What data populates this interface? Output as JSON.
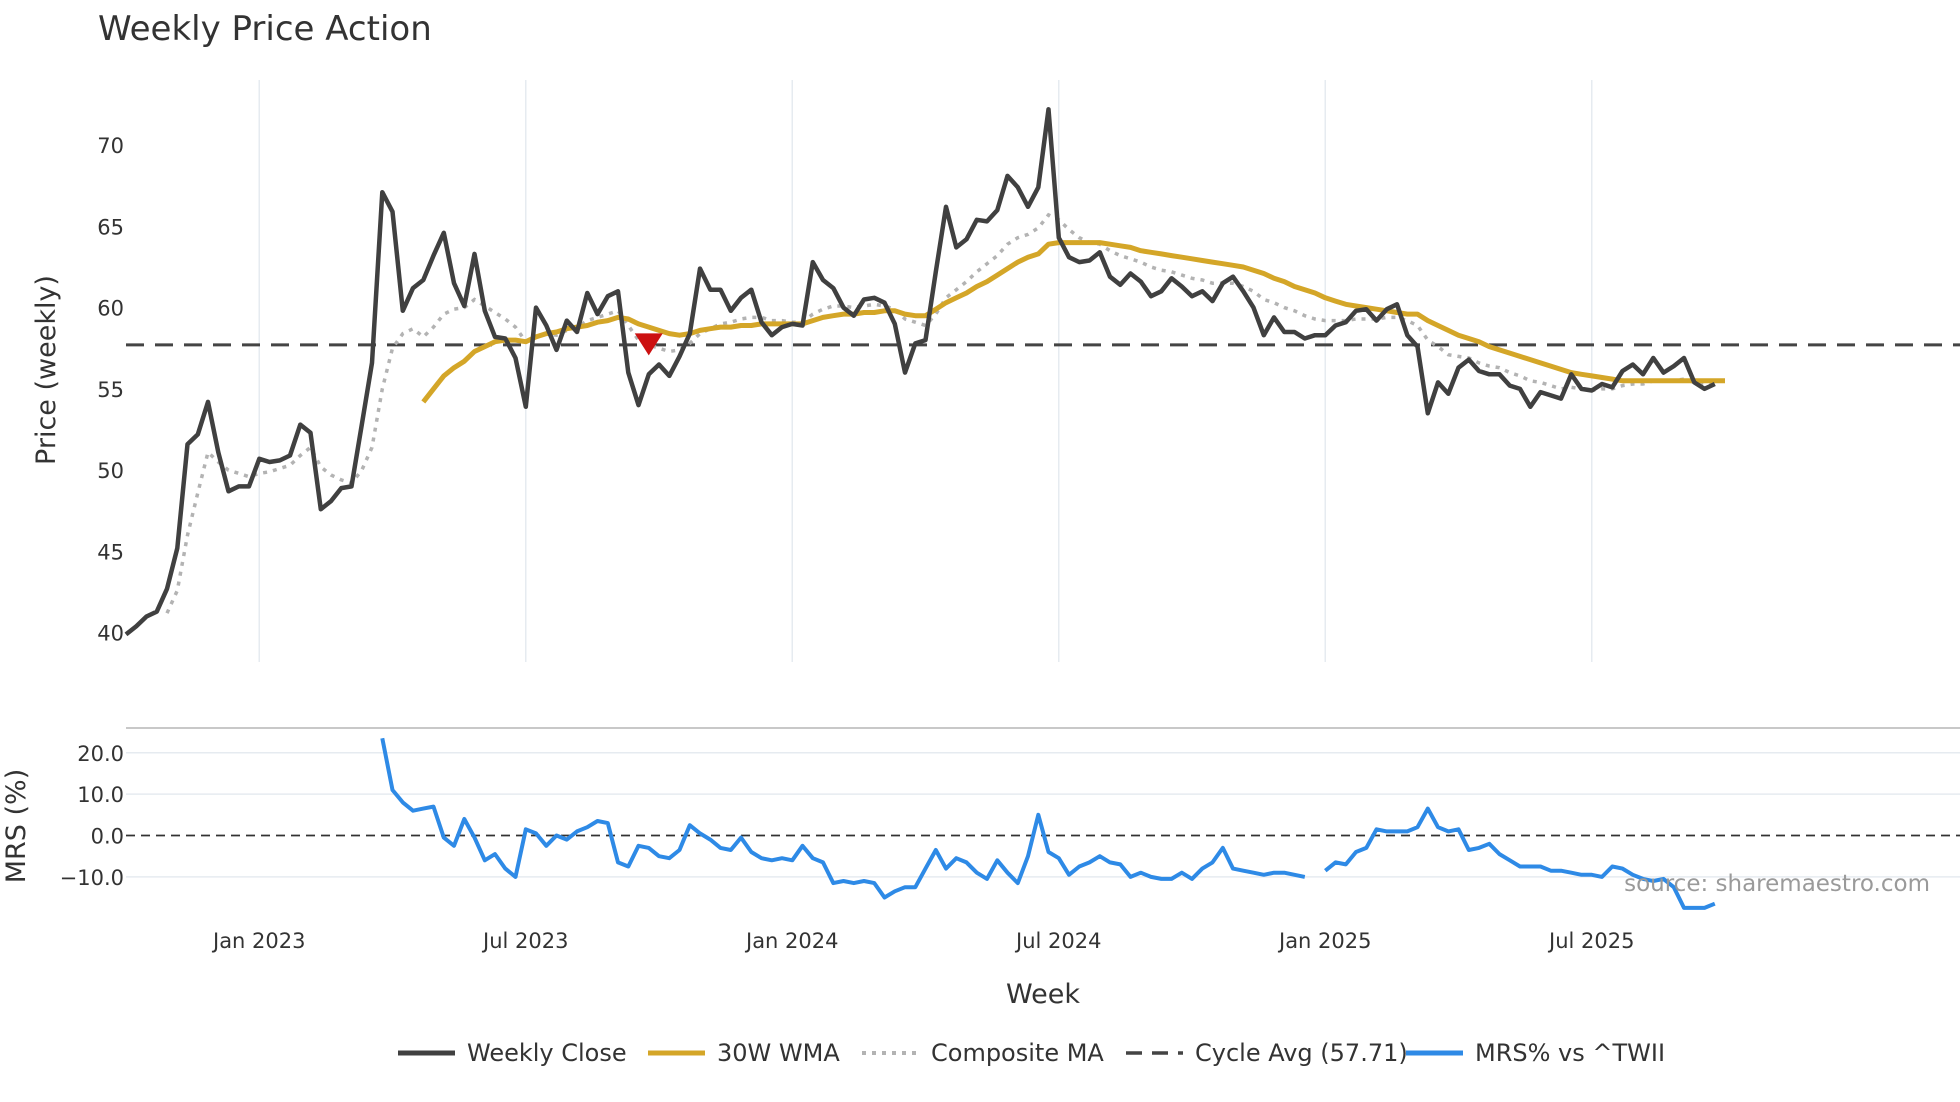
{
  "chart_data": [
    {
      "type": "line",
      "title": "Weekly Price Action",
      "ylabel": "Price (weekly)",
      "xlabel": "",
      "ylim": [
        38.2,
        74.0
      ],
      "yticks": [
        40,
        45,
        50,
        55,
        60,
        65,
        70
      ],
      "x_tick_labels": [
        "Jan 2023",
        "Jul 2023",
        "Jan 2024",
        "Jul 2024",
        "Jan 2025",
        "Jul 2025"
      ],
      "x_tick_weeks": [
        13,
        39,
        65,
        91,
        117,
        143
      ],
      "cycle_avg": 57.71,
      "signal_marker": {
        "type": "down-triangle",
        "week": 51,
        "value": 57.8,
        "color": "#cc1111"
      },
      "series": [
        {
          "name": "Weekly Close",
          "color": "#404040",
          "values": [
            39.9,
            40.4,
            41.0,
            41.3,
            42.7,
            45.2,
            51.6,
            52.2,
            54.2,
            51.1,
            48.7,
            49.0,
            49.0,
            50.7,
            50.5,
            50.6,
            50.9,
            52.8,
            52.3,
            47.6,
            48.1,
            48.9,
            49.0,
            52.8,
            56.6,
            67.1,
            65.9,
            59.8,
            61.2,
            61.7,
            63.2,
            64.6,
            61.5,
            60.1,
            63.3,
            59.8,
            58.2,
            58.1,
            56.9,
            53.9,
            60.0,
            58.9,
            57.4,
            59.2,
            58.5,
            60.9,
            59.6,
            60.7,
            61.0,
            56.0,
            54.0,
            55.9,
            56.5,
            55.8,
            57.0,
            58.4,
            62.4,
            61.1,
            61.1,
            59.8,
            60.6,
            61.1,
            59.1,
            58.3,
            58.8,
            59.0,
            58.9,
            62.8,
            61.7,
            61.2,
            60.0,
            59.5,
            60.5,
            60.6,
            60.3,
            59.0,
            56.0,
            57.8,
            58.0,
            62.2,
            66.2,
            63.7,
            64.2,
            65.4,
            65.3,
            66.0,
            68.1,
            67.4,
            66.2,
            67.4,
            72.2,
            64.3,
            63.1,
            62.8,
            62.9,
            63.4,
            61.9,
            61.4,
            62.1,
            61.6,
            60.7,
            61.0,
            61.8,
            61.3,
            60.7,
            61.0,
            60.4,
            61.5,
            61.9,
            61.0,
            60.0,
            58.3,
            59.4,
            58.5,
            58.5,
            58.1,
            58.3,
            58.3,
            58.9,
            59.1,
            59.8,
            59.9,
            59.2,
            59.9,
            60.2,
            58.3,
            57.6,
            53.5,
            55.4,
            54.7,
            56.3,
            56.8,
            56.1,
            55.9,
            55.9,
            55.2,
            55.0,
            53.9,
            54.8,
            54.6,
            54.4,
            55.9,
            55.0,
            54.9,
            55.3,
            55.1,
            56.1,
            56.5,
            55.9,
            56.9,
            56.0,
            56.4,
            56.9,
            55.4,
            55.0,
            55.3
          ]
        },
        {
          "name": "30W WMA",
          "color": "#d4a628",
          "values": [
            null,
            null,
            null,
            null,
            null,
            null,
            null,
            null,
            null,
            null,
            null,
            null,
            null,
            null,
            null,
            null,
            null,
            null,
            null,
            null,
            null,
            null,
            null,
            null,
            null,
            null,
            null,
            null,
            null,
            54.2,
            55.0,
            55.8,
            56.3,
            56.7,
            57.3,
            57.6,
            57.9,
            58.0,
            58.0,
            57.9,
            58.2,
            58.4,
            58.5,
            58.7,
            58.8,
            58.9,
            59.1,
            59.2,
            59.4,
            59.3,
            59.0,
            58.8,
            58.6,
            58.4,
            58.3,
            58.4,
            58.6,
            58.7,
            58.8,
            58.8,
            58.9,
            58.9,
            59.0,
            59.0,
            59.0,
            59.0,
            59.0,
            59.2,
            59.4,
            59.5,
            59.6,
            59.6,
            59.7,
            59.7,
            59.8,
            59.8,
            59.6,
            59.5,
            59.5,
            59.9,
            60.3,
            60.6,
            60.9,
            61.3,
            61.6,
            62.0,
            62.4,
            62.8,
            63.1,
            63.3,
            63.9,
            64.0,
            64.0,
            64.0,
            64.0,
            64.0,
            63.9,
            63.8,
            63.7,
            63.5,
            63.4,
            63.3,
            63.2,
            63.1,
            63.0,
            62.9,
            62.8,
            62.7,
            62.6,
            62.5,
            62.3,
            62.1,
            61.8,
            61.6,
            61.3,
            61.1,
            60.9,
            60.6,
            60.4,
            60.2,
            60.1,
            60.0,
            59.9,
            59.8,
            59.7,
            59.6,
            59.6,
            59.2,
            58.9,
            58.6,
            58.3,
            58.1,
            57.9,
            57.6,
            57.4,
            57.2,
            57.0,
            56.8,
            56.6,
            56.4,
            56.2,
            56.0,
            55.9,
            55.8,
            55.7,
            55.6,
            55.5,
            55.5,
            55.5,
            55.5,
            55.5,
            55.5,
            55.5,
            55.5,
            55.5,
            55.5,
            55.5
          ]
        },
        {
          "name": "Composite MA",
          "color": "#b3b3b3",
          "values": [
            null,
            null,
            null,
            null,
            41.2,
            42.6,
            46.0,
            48.6,
            51.1,
            50.5,
            50.0,
            49.8,
            49.6,
            49.8,
            49.9,
            50.1,
            50.3,
            50.9,
            51.4,
            50.2,
            49.7,
            49.4,
            49.2,
            50.0,
            51.4,
            55.0,
            57.5,
            58.4,
            58.7,
            58.2,
            58.8,
            59.6,
            59.9,
            60.0,
            60.5,
            60.1,
            59.7,
            59.3,
            58.8,
            57.9,
            58.2,
            58.4,
            58.3,
            58.6,
            58.8,
            59.2,
            59.4,
            59.6,
            59.8,
            58.9,
            58.0,
            57.7,
            57.5,
            57.3,
            57.4,
            57.8,
            58.4,
            58.7,
            59.0,
            59.1,
            59.3,
            59.4,
            59.4,
            59.2,
            59.2,
            59.1,
            59.1,
            59.6,
            59.9,
            60.1,
            60.1,
            60.0,
            60.1,
            60.2,
            60.1,
            59.9,
            59.3,
            59.1,
            58.9,
            59.6,
            60.6,
            61.1,
            61.6,
            62.2,
            62.7,
            63.2,
            63.9,
            64.3,
            64.5,
            64.9,
            65.7,
            65.4,
            64.8,
            64.3,
            64.0,
            63.9,
            63.5,
            63.2,
            63.0,
            62.8,
            62.5,
            62.3,
            62.2,
            62.0,
            61.8,
            61.7,
            61.5,
            61.5,
            61.5,
            61.3,
            61.0,
            60.5,
            60.3,
            60.0,
            59.8,
            59.5,
            59.3,
            59.2,
            59.2,
            59.2,
            59.3,
            59.3,
            59.3,
            59.4,
            59.4,
            59.2,
            58.9,
            58.0,
            57.6,
            57.1,
            57.0,
            56.9,
            56.6,
            56.4,
            56.3,
            56.0,
            55.8,
            55.5,
            55.4,
            55.2,
            55.0,
            55.1,
            55.0,
            54.9,
            55.0,
            55.0,
            55.2,
            55.3,
            55.3,
            55.5,
            55.5,
            55.5,
            55.6,
            55.4,
            55.3,
            55.3
          ]
        },
        {
          "name": "Cycle Avg (57.71)",
          "color": "#444444",
          "value": 57.71
        }
      ]
    },
    {
      "type": "line",
      "ylabel": "MRS (%)",
      "xlabel": "Week",
      "ylim": [
        -18.5,
        26.0
      ],
      "yticks": [
        20.0,
        10.0,
        0.0,
        -10.0
      ],
      "ytick_labels": [
        "20.0",
        "10.0",
        "0.0",
        "−10.0"
      ],
      "x_tick_labels": [
        "Jan 2023",
        "Jul 2023",
        "Jan 2024",
        "Jul 2024",
        "Jan 2025",
        "Jul 2025"
      ],
      "x_tick_weeks": [
        13,
        39,
        65,
        91,
        117,
        143
      ],
      "series": [
        {
          "name": "MRS% vs ^TWII",
          "color": "#2e8ae6",
          "values": [
            null,
            null,
            null,
            null,
            null,
            null,
            null,
            null,
            null,
            null,
            null,
            null,
            null,
            null,
            null,
            null,
            null,
            null,
            null,
            null,
            null,
            null,
            null,
            null,
            null,
            23.5,
            11.0,
            8.0,
            6.0,
            6.5,
            7.0,
            -0.5,
            -2.5,
            4.0,
            -0.5,
            -6.0,
            -4.5,
            -8.0,
            -10.0,
            1.5,
            0.5,
            -2.5,
            0.0,
            -1.0,
            1.0,
            2.0,
            3.5,
            3.0,
            -6.5,
            -7.5,
            -2.5,
            -3.0,
            -5.0,
            -5.5,
            -3.5,
            2.5,
            0.5,
            -1.0,
            -3.0,
            -3.5,
            -0.5,
            -4.0,
            -5.5,
            -6.0,
            -5.5,
            -6.0,
            -2.5,
            -5.5,
            -6.5,
            -11.5,
            -11.0,
            -11.5,
            -11.0,
            -11.5,
            -15.0,
            -13.5,
            -12.5,
            -12.5,
            -8.0,
            -3.5,
            -8.0,
            -5.5,
            -6.5,
            -9.0,
            -10.5,
            -6.0,
            -9.0,
            -11.5,
            -5.0,
            5.0,
            -4.0,
            -5.5,
            -9.5,
            -7.5,
            -6.5,
            -5.0,
            -6.5,
            -7.0,
            -10.0,
            -9.0,
            -10.0,
            -10.5,
            -10.5,
            -9.0,
            -10.5,
            -8.0,
            -6.5,
            -3.0,
            -8.0,
            -8.5,
            -9.0,
            -9.5,
            -9.0,
            -9.0,
            -9.5,
            -10.0,
            null,
            -8.5,
            -6.5,
            -7.0,
            -4.0,
            -3.0,
            1.5,
            1.0,
            1.0,
            1.0,
            2.0,
            6.5,
            2.0,
            1.0,
            1.5,
            -3.5,
            -3.0,
            -2.0,
            -4.5,
            -6.0,
            -7.5,
            -7.5,
            -7.5,
            -8.5,
            -8.5,
            -9.0,
            -9.5,
            -9.5,
            -10.0,
            -7.5,
            -8.0,
            -9.5,
            -10.5,
            -11.0,
            -10.5,
            -12.5,
            -17.5,
            -17.5,
            -17.5,
            -16.5
          ]
        }
      ],
      "reference_line": 0
    }
  ],
  "legend": [
    {
      "label": "Weekly Close",
      "style": "solid",
      "color": "#404040"
    },
    {
      "label": "30W WMA",
      "style": "solid",
      "color": "#d4a628"
    },
    {
      "label": "Composite MA",
      "style": "dotted",
      "color": "#b3b3b3"
    },
    {
      "label": "Cycle Avg (57.71)",
      "style": "dashed",
      "color": "#444444"
    },
    {
      "label": "MRS% vs ^TWII",
      "style": "solid",
      "color": "#2e8ae6"
    }
  ],
  "source_note": "source: sharemaestro.com"
}
